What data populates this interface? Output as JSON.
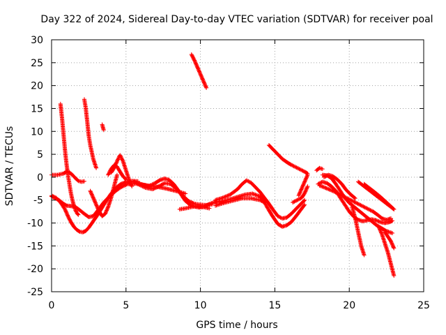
{
  "chart_data": {
    "type": "scatter",
    "title": "Day 322 of 2024, Sidereal Day-to-day VTEC variation (SDTVAR) for receiver poal",
    "xlabel": "GPS time / hours",
    "ylabel": "SDTVAR / TECUs",
    "xlim": [
      0,
      25
    ],
    "ylim": [
      -25,
      30
    ],
    "xticks": [
      "0",
      "5",
      "10",
      "15",
      "20",
      "25"
    ],
    "yticks": [
      "-25",
      "-20",
      "-15",
      "-10",
      "-5",
      "0",
      "5",
      "10",
      "15",
      "20",
      "25",
      "30"
    ],
    "grid": true,
    "marker": "+",
    "series": [
      {
        "name": "SDTVAR",
        "color": "#ff0000",
        "tracks": [
          {
            "id": "a1",
            "x": [
              0,
              0.5,
              0.8,
              1.0,
              1.3,
              1.6,
              1.9,
              2.2,
              2.5,
              2.8,
              3.1,
              3.5,
              3.9,
              4.3,
              4.7,
              5.1,
              5.6,
              6.1,
              6.6,
              7.1,
              7.6,
              8.1,
              8.6,
              9.0
            ],
            "y": [
              -4.2,
              -5.0,
              -5.8,
              -6.2,
              -6.3,
              -6.5,
              -7.2,
              -8.0,
              -8.7,
              -8.5,
              -7.3,
              -5.5,
              -4.2,
              -3.0,
              -2.1,
              -1.5,
              -1.4,
              -1.6,
              -1.9,
              -2.1,
              -2.4,
              -2.8,
              -3.2,
              -3.6
            ]
          },
          {
            "id": "a2",
            "x": [
              0,
              0.3,
              0.6,
              0.9,
              1.1,
              1.3,
              1.5,
              1.7,
              1.9,
              2.1,
              2.3,
              2.5,
              2.8,
              3.1,
              3.4,
              3.7,
              4.0,
              4.3,
              4.6,
              5.0,
              5.4,
              5.8
            ],
            "y": [
              -4.0,
              -4.5,
              -5.5,
              -7.0,
              -8.5,
              -9.8,
              -10.8,
              -11.5,
              -11.9,
              -12.0,
              -11.7,
              -11.0,
              -9.6,
              -8.2,
              -6.6,
              -5.0,
              -3.6,
              -2.4,
              -1.6,
              -1.0,
              -0.8,
              -0.9
            ]
          },
          {
            "id": "a3",
            "x": [
              0,
              0.4,
              0.8,
              1.0,
              1.2,
              1.4,
              1.6,
              1.8,
              2.0,
              2.2
            ],
            "y": [
              0.5,
              0.5,
              0.8,
              1.2,
              1.1,
              0.5,
              -0.2,
              -0.8,
              -1.0,
              -0.9
            ]
          },
          {
            "id": "a4",
            "x": [
              0.6,
              0.7,
              0.8,
              0.9,
              1.0,
              1.1,
              1.2,
              1.3,
              1.4,
              1.5,
              1.6,
              1.7,
              1.8
            ],
            "y": [
              16.0,
              13.0,
              9.5,
              6.0,
              3.0,
              0.5,
              -1.5,
              -3.5,
              -5.0,
              -6.2,
              -7.2,
              -7.8,
              -8.2
            ]
          },
          {
            "id": "a5",
            "x": [
              2.2,
              2.3,
              2.4,
              2.5,
              2.6,
              2.7,
              2.8,
              2.9,
              3.0
            ],
            "y": [
              17.0,
              15.0,
              12.0,
              9.0,
              7.0,
              5.5,
              4.0,
              3.0,
              2.0
            ]
          },
          {
            "id": "a6",
            "x": [
              2.6,
              2.8,
              3.0,
              3.2,
              3.4,
              3.6,
              3.8,
              4.0,
              4.2,
              4.4
            ],
            "y": [
              -3.0,
              -4.5,
              -6.0,
              -7.5,
              -8.5,
              -8.0,
              -6.5,
              -4.5,
              -2.0,
              0.5
            ]
          },
          {
            "id": "a7",
            "x": [
              3.4,
              3.5
            ],
            "y": [
              11.5,
              10.3
            ]
          },
          {
            "id": "a8",
            "x": [
              4.0,
              4.2,
              4.4,
              4.6,
              4.8,
              5.0,
              5.2,
              5.4
            ],
            "y": [
              1.0,
              2.0,
              3.5,
              4.8,
              3.5,
              1.5,
              -0.5,
              -2.0
            ]
          },
          {
            "id": "a9",
            "x": [
              3.8,
              4.0,
              4.2,
              4.4,
              4.6,
              4.8,
              5.0
            ],
            "y": [
              0.5,
              1.8,
              2.6,
              2.3,
              1.2,
              0.2,
              -0.5
            ]
          },
          {
            "id": "b1",
            "x": [
              5.5,
              6.0,
              6.5,
              7.0,
              7.3,
              7.6,
              7.9,
              8.2,
              8.5,
              8.8,
              9.0,
              9.3,
              9.6,
              9.9,
              10.2,
              10.5,
              10.8,
              11.1
            ],
            "y": [
              -1.0,
              -1.5,
              -2.0,
              -1.2,
              -0.6,
              -0.3,
              -0.6,
              -1.5,
              -2.8,
              -4.3,
              -5.2,
              -6.0,
              -6.4,
              -6.6,
              -6.5,
              -6.0,
              -5.6,
              -5.3
            ]
          },
          {
            "id": "b2",
            "x": [
              5.8,
              6.3,
              6.8,
              7.2,
              7.6,
              8.0,
              8.4,
              8.8,
              9.2,
              9.6,
              10.0,
              10.4,
              10.8
            ],
            "y": [
              -1.5,
              -2.3,
              -2.6,
              -2.0,
              -1.3,
              -1.5,
              -2.5,
              -4.0,
              -5.2,
              -5.8,
              -6.0,
              -6.1,
              -5.9
            ]
          },
          {
            "id": "b3",
            "x": [
              8.6,
              9.0,
              9.4,
              9.8,
              10.2,
              10.6
            ],
            "y": [
              -7.0,
              -6.8,
              -6.5,
              -6.3,
              -6.5,
              -6.8
            ]
          },
          {
            "id": "b4",
            "x": [
              9.4,
              9.6,
              9.8,
              10.0,
              10.2,
              10.4
            ],
            "y": [
              26.8,
              25.5,
              24.0,
              22.5,
              21.0,
              19.5
            ]
          },
          {
            "id": "c1",
            "x": [
              11.0,
              11.5,
              12.0,
              12.5,
              12.8,
              13.1,
              13.4,
              13.7,
              14.0,
              14.3,
              14.6,
              14.9,
              15.2,
              15.5,
              15.8,
              16.1,
              16.4,
              16.7,
              17.0
            ],
            "y": [
              -5.0,
              -4.5,
              -3.8,
              -2.6,
              -1.5,
              -0.7,
              -1.2,
              -2.2,
              -3.2,
              -4.5,
              -5.8,
              -7.2,
              -8.5,
              -9.0,
              -8.8,
              -8.0,
              -7.0,
              -6.0,
              -5.0
            ]
          },
          {
            "id": "c2",
            "x": [
              11.0,
              11.5,
              12.0,
              12.5,
              13.0,
              13.5,
              14.0,
              14.3,
              14.6,
              14.9,
              15.2,
              15.5,
              15.8,
              16.1,
              16.4,
              16.7,
              17.0
            ],
            "y": [
              -5.5,
              -5.2,
              -4.8,
              -4.3,
              -3.8,
              -3.6,
              -4.2,
              -5.5,
              -7.2,
              -8.8,
              -10.2,
              -10.8,
              -10.5,
              -9.8,
              -8.6,
              -7.3,
              -6.0
            ]
          },
          {
            "id": "c3",
            "x": [
              11.0,
              11.6,
              12.2,
              12.8,
              13.4,
              14.0,
              14.4
            ],
            "y": [
              -6.2,
              -5.6,
              -5.1,
              -4.6,
              -4.6,
              -5.0,
              -5.6
            ]
          },
          {
            "id": "c4",
            "x": [
              14.6,
              14.9,
              15.2,
              15.5,
              15.8,
              16.1,
              16.4,
              16.7,
              17.0,
              17.2
            ],
            "y": [
              7.0,
              6.0,
              5.0,
              4.0,
              3.3,
              2.7,
              2.2,
              1.7,
              1.2,
              0.8
            ]
          },
          {
            "id": "c5",
            "x": [
              16.2,
              16.5,
              16.8,
              17.0,
              17.2
            ],
            "y": [
              -5.5,
              -5.0,
              -4.5,
              -3.5,
              -2.0
            ]
          },
          {
            "id": "c6",
            "x": [
              16.6,
              16.8,
              17.0,
              17.2
            ],
            "y": [
              -4.0,
              -2.5,
              -1.0,
              0.5
            ]
          },
          {
            "id": "d1",
            "x": [
              17.8,
              18.0,
              18.2
            ],
            "y": [
              1.5,
              2.0,
              1.8
            ]
          },
          {
            "id": "d2",
            "x": [
              17.9,
              18.2,
              18.5,
              18.8,
              19.1,
              19.4,
              19.7,
              20.0,
              20.3,
              20.6,
              20.9,
              21.2,
              21.5,
              21.8,
              22.1,
              22.4,
              22.7,
              22.9
            ],
            "y": [
              -1.5,
              -1.0,
              -1.3,
              -2.0,
              -3.0,
              -4.5,
              -6.0,
              -7.5,
              -8.6,
              -9.3,
              -9.6,
              -9.4,
              -9.2,
              -9.4,
              -9.8,
              -10.0,
              -9.8,
              -9.5
            ]
          },
          {
            "id": "d3",
            "x": [
              18.0,
              18.3,
              18.6,
              18.9,
              19.2,
              19.5,
              19.8,
              20.1,
              20.4,
              20.7,
              21.0,
              21.3,
              21.6,
              21.9,
              22.2,
              22.5,
              22.8
            ],
            "y": [
              -1.8,
              -2.2,
              -2.6,
              -3.0,
              -3.5,
              -4.0,
              -4.5,
              -5.0,
              -5.5,
              -6.0,
              -6.5,
              -7.0,
              -7.5,
              -8.2,
              -9.0,
              -9.3,
              -9.0
            ]
          },
          {
            "id": "d4",
            "x": [
              18.2,
              18.5,
              18.8,
              19.1,
              19.4,
              19.7,
              20.0,
              20.3,
              20.6,
              20.9,
              21.2,
              21.5,
              21.8,
              22.1,
              22.4,
              22.7,
              22.9
            ],
            "y": [
              0.5,
              0.4,
              -0.2,
              -1.5,
              -3.0,
              -4.5,
              -5.6,
              -6.4,
              -7.2,
              -8.0,
              -8.8,
              -9.6,
              -10.4,
              -11.0,
              -11.6,
              -12.0,
              -12.2
            ]
          },
          {
            "id": "d5",
            "x": [
              18.3,
              18.6,
              18.9,
              19.2,
              19.5,
              19.8,
              20.1,
              20.4
            ],
            "y": [
              0.0,
              0.5,
              0.2,
              -0.5,
              -1.5,
              -2.8,
              -3.8,
              -4.6
            ]
          },
          {
            "id": "d6",
            "x": [
              20.2,
              20.4,
              20.6,
              20.8,
              21.0
            ],
            "y": [
              -6.5,
              -9.0,
              -12.0,
              -15.0,
              -17.0
            ]
          },
          {
            "id": "d7",
            "x": [
              20.6,
              21.0,
              21.4,
              21.8,
              22.2,
              22.6,
              23.0
            ],
            "y": [
              -1.0,
              -2.0,
              -3.0,
              -4.0,
              -5.0,
              -6.0,
              -7.0
            ]
          },
          {
            "id": "d8",
            "x": [
              21.0,
              21.4,
              21.8,
              22.2,
              22.6,
              23.0
            ],
            "y": [
              -1.5,
              -2.5,
              -3.5,
              -4.6,
              -5.8,
              -7.0
            ]
          },
          {
            "id": "d9",
            "x": [
              22.0,
              22.2,
              22.4,
              22.6,
              22.8,
              23.0
            ],
            "y": [
              -11.0,
              -12.5,
              -14.5,
              -16.5,
              -19.0,
              -21.5
            ]
          },
          {
            "id": "d10",
            "x": [
              22.4,
              22.6,
              22.8,
              23.0
            ],
            "y": [
              -12.0,
              -13.0,
              -14.0,
              -15.5
            ]
          }
        ]
      }
    ]
  }
}
